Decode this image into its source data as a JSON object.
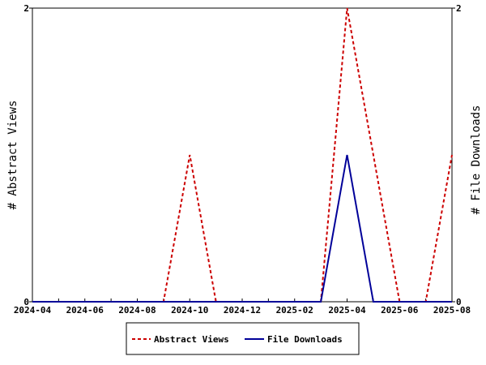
{
  "chart_data": {
    "type": "line",
    "title": "",
    "xlabel": "",
    "ylabel_left": "# Abstract Views",
    "ylabel_right": "# File Downloads",
    "x": [
      "2024-04",
      "2024-05",
      "2024-06",
      "2024-07",
      "2024-08",
      "2024-09",
      "2024-10",
      "2024-11",
      "2024-12",
      "2025-01",
      "2025-02",
      "2025-03",
      "2025-04",
      "2025-05",
      "2025-06",
      "2025-07",
      "2025-08"
    ],
    "x_tick_labels": [
      "2024-04",
      "2024-06",
      "2024-08",
      "2024-10",
      "2024-12",
      "2025-02",
      "2025-04",
      "2025-06",
      "2025-08"
    ],
    "ylim_left": [
      0,
      2
    ],
    "ylim_right": [
      0,
      2
    ],
    "y_tick_labels_left": [
      "0",
      "2"
    ],
    "y_tick_labels_right": [
      "0",
      "2"
    ],
    "grid": false,
    "legend_placement": "bottom",
    "series": [
      {
        "name": "Abstract Views",
        "axis": "left",
        "color": "#cc0000",
        "style": "dashed",
        "values": [
          0,
          0,
          0,
          0,
          0,
          0,
          1,
          0,
          0,
          0,
          0,
          0,
          2,
          1,
          0,
          0,
          1
        ]
      },
      {
        "name": "File Downloads",
        "axis": "right",
        "color": "#000099",
        "style": "solid",
        "values": [
          0,
          0,
          0,
          0,
          0,
          0,
          0,
          0,
          0,
          0,
          0,
          0,
          1,
          0,
          0,
          0,
          0
        ]
      }
    ]
  }
}
